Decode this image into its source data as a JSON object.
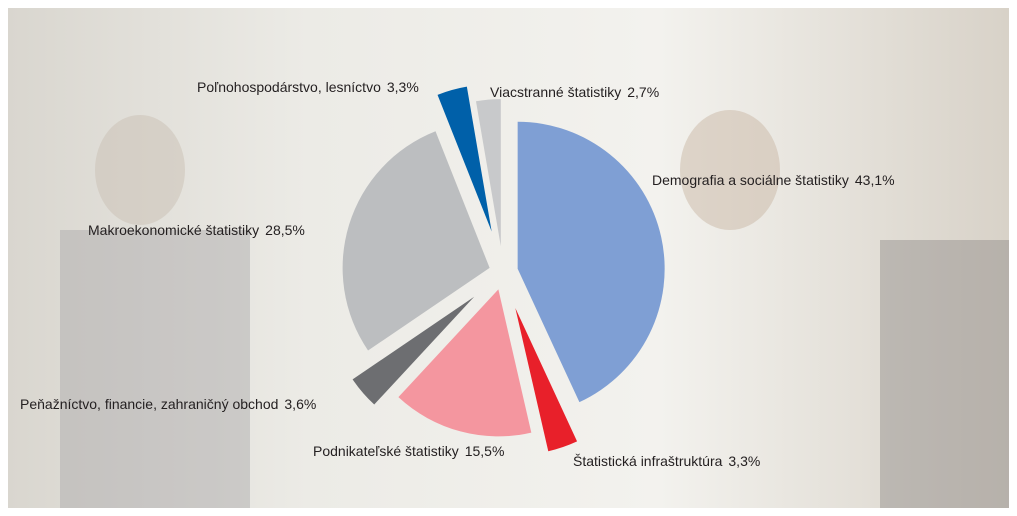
{
  "chart_data": {
    "type": "pie",
    "categories": [
      "Demografia a sociálne štatistiky",
      "Štatistická infraštruktúra",
      "Podnikateľské štatistiky",
      "Peňažníctvo, financie, zahraničný obchod",
      "Makroekonomické štatistiky",
      "Poľnohospodárstvo, lesníctvo",
      "Viacstranné štatistiky"
    ],
    "values": [
      43.1,
      3.3,
      15.5,
      3.6,
      28.5,
      3.3,
      2.7
    ],
    "value_labels": [
      "43,1%",
      "3,3%",
      "15,5%",
      "3,6%",
      "28,5%",
      "3,3%",
      "2,7%"
    ],
    "colors": [
      "#7f9fd4",
      "#e8202a",
      "#f4969f",
      "#6d6e71",
      "#bcbec0",
      "#0060a9",
      "#c8c9cb"
    ]
  }
}
